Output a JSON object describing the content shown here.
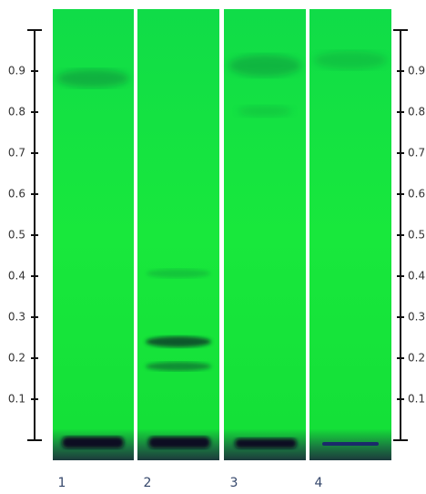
{
  "scale_labels": [
    "0.1",
    "0.2",
    "0.3",
    "0.4",
    "0.5",
    "0.6",
    "0.7",
    "0.8",
    "0.9"
  ],
  "lane_labels": [
    "1",
    "2",
    "3",
    "4"
  ]
}
